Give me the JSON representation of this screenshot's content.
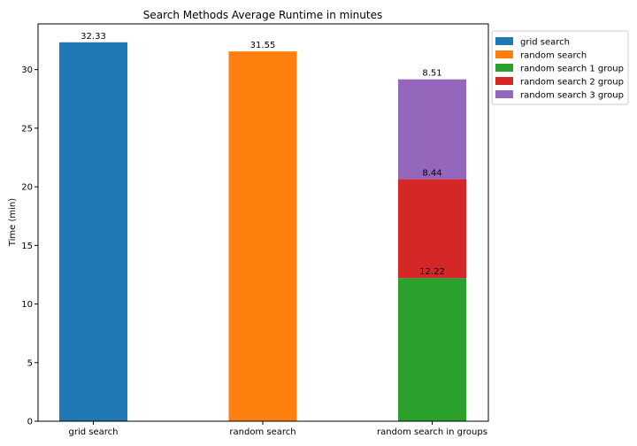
{
  "chart_data": {
    "type": "bar",
    "title": "Search Methods Average Runtime in minutes",
    "xlabel": "",
    "ylabel": "Time (min)",
    "ylim": [
      0,
      33.9
    ],
    "yticks": [
      0,
      5,
      10,
      15,
      20,
      25,
      30
    ],
    "categories": [
      "grid search",
      "random search",
      "random search in groups"
    ],
    "stacked": true,
    "legend_position": "outside-top-right",
    "series": [
      {
        "name": "grid search",
        "color": "#1f77b4",
        "values": [
          32.33,
          null,
          null
        ],
        "labels": [
          "32.33",
          null,
          null
        ]
      },
      {
        "name": "random search",
        "color": "#ff7f0e",
        "values": [
          null,
          31.55,
          null
        ],
        "labels": [
          null,
          "31.55",
          null
        ]
      },
      {
        "name": "random search 1 group",
        "color": "#2ca02c",
        "values": [
          null,
          null,
          12.22
        ],
        "labels": [
          null,
          null,
          "12.22"
        ]
      },
      {
        "name": "random search 2 group",
        "color": "#d62728",
        "values": [
          null,
          null,
          8.44
        ],
        "labels": [
          null,
          null,
          "8.44"
        ]
      },
      {
        "name": "random search 3 group",
        "color": "#9467bd",
        "values": [
          null,
          null,
          8.51
        ],
        "labels": [
          null,
          null,
          "8.51"
        ]
      }
    ]
  }
}
